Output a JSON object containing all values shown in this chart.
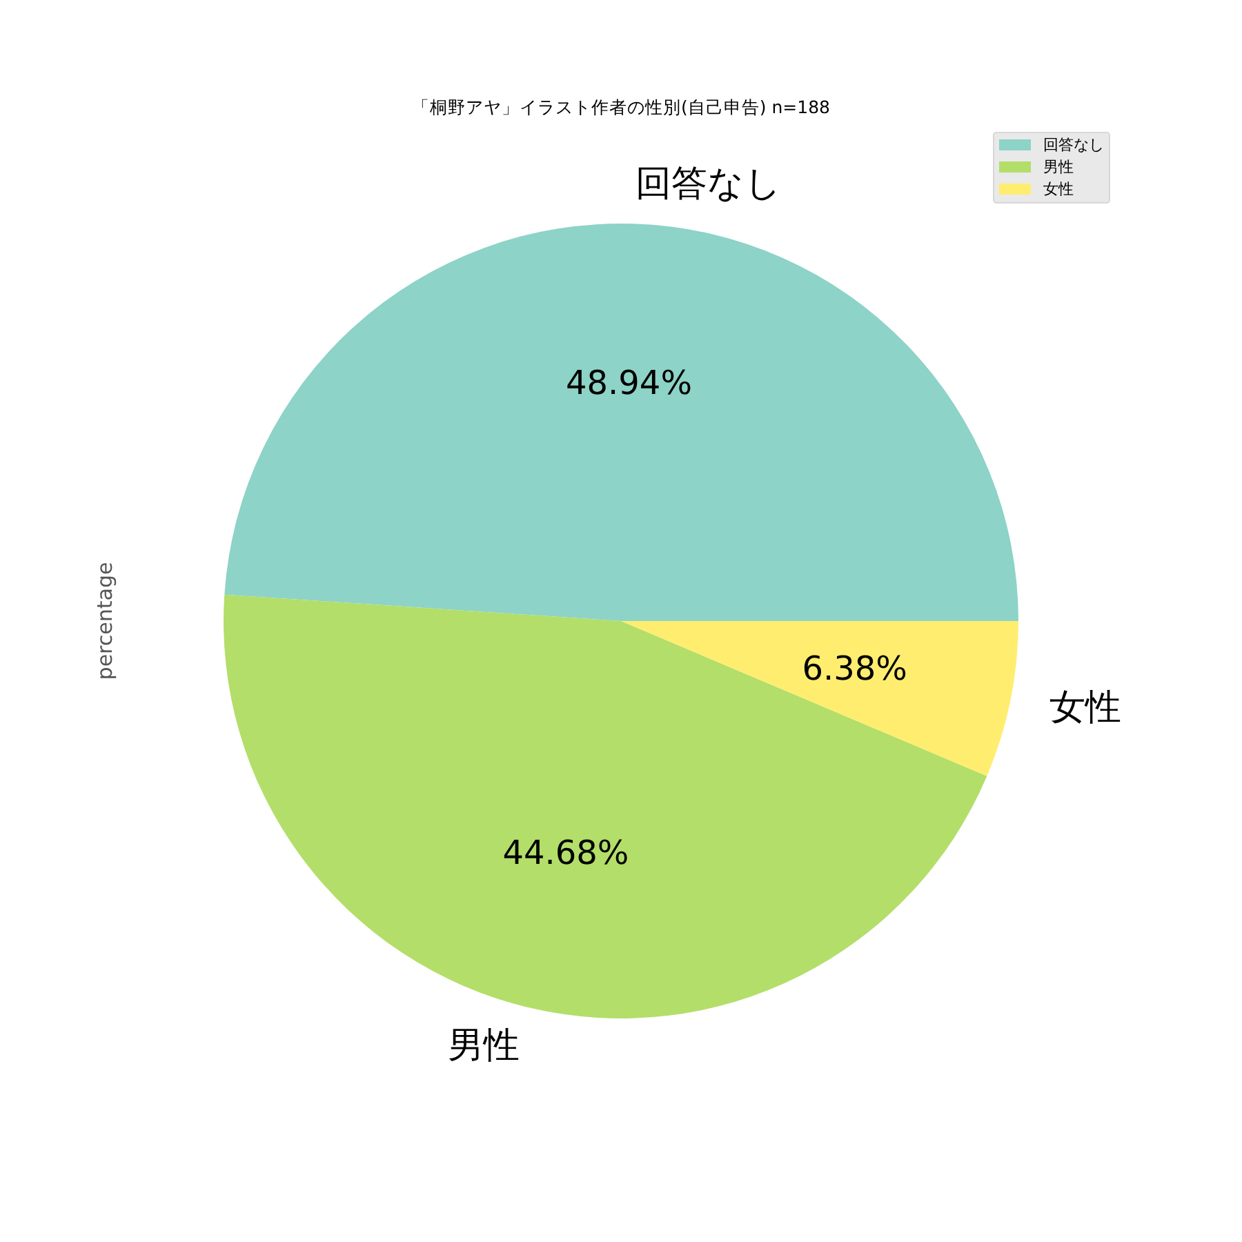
{
  "chart_data": {
    "type": "pie",
    "title": "「桐野アヤ」イラスト作者の性別(自己申告) n=188",
    "ylabel": "percentage",
    "categories": [
      "回答なし",
      "男性",
      "女性"
    ],
    "values": [
      48.94,
      44.68,
      6.38
    ],
    "value_labels": [
      "48.94%",
      "44.68%",
      "6.38%"
    ],
    "colors": [
      "#8dd3c7",
      "#b3de69",
      "#ffed6f"
    ],
    "legend": "top right"
  }
}
